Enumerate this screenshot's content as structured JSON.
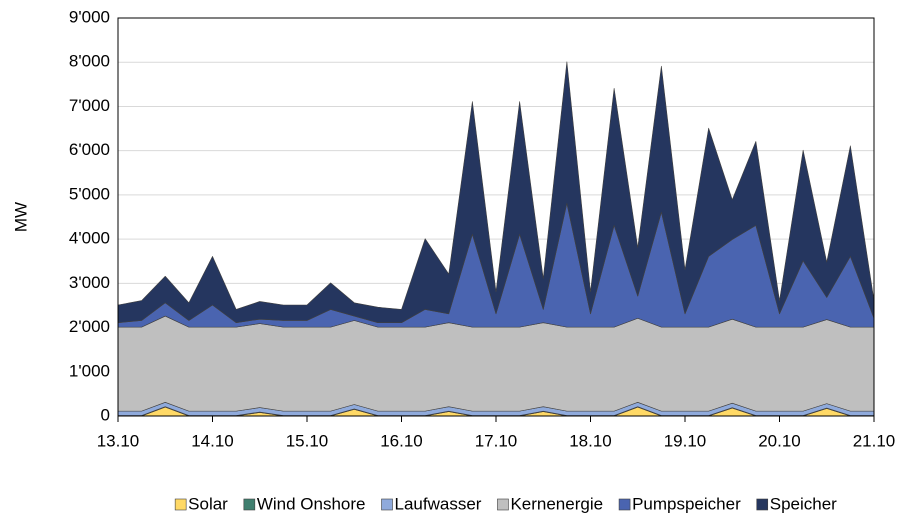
{
  "chart_data": {
    "type": "stacked_area",
    "y_label": "MW",
    "x": [
      0,
      0.25,
      0.5,
      0.75,
      1,
      1.25,
      1.5,
      1.75,
      2,
      2.25,
      2.5,
      2.75,
      3,
      3.25,
      3.5,
      3.75,
      4,
      4.25,
      4.5,
      4.75,
      5,
      5.25,
      5.5,
      5.75,
      6,
      6.25,
      6.5,
      6.75,
      7,
      7.25,
      7.5,
      7.75,
      8
    ],
    "xlim": [
      0,
      8
    ],
    "xticks": [
      {
        "value": 0,
        "label": "13.10"
      },
      {
        "value": 1,
        "label": "14.10"
      },
      {
        "value": 2,
        "label": "15.10"
      },
      {
        "value": 3,
        "label": "16.10"
      },
      {
        "value": 4,
        "label": "17.10"
      },
      {
        "value": 5,
        "label": "18.10"
      },
      {
        "value": 6,
        "label": "19.10"
      },
      {
        "value": 7,
        "label": "20.10"
      },
      {
        "value": 8,
        "label": "21.10"
      }
    ],
    "ylim": [
      0,
      9000
    ],
    "yticks": [
      0,
      {
        "value": 1000,
        "label": "1'000"
      },
      {
        "value": 2000,
        "label": "2'000"
      },
      {
        "value": 3000,
        "label": "3'000"
      },
      {
        "value": 4000,
        "label": "4'000"
      },
      {
        "value": 5000,
        "label": "5'000"
      },
      {
        "value": 6000,
        "label": "6'000"
      },
      {
        "value": 7000,
        "label": "7'000"
      },
      {
        "value": 8000,
        "label": "8'000"
      },
      {
        "value": 9000,
        "label": "9'000"
      }
    ],
    "grid": true,
    "series": [
      {
        "name": "Solar",
        "color": "#ffd966",
        "values": [
          0,
          0,
          200,
          0,
          0,
          0,
          80,
          0,
          0,
          0,
          150,
          0,
          0,
          0,
          100,
          0,
          0,
          0,
          100,
          0,
          0,
          0,
          200,
          0,
          0,
          0,
          180,
          0,
          0,
          0,
          170,
          0,
          0
        ]
      },
      {
        "name": "Wind Onshore",
        "color": "#3f7f6f",
        "values": [
          10,
          10,
          10,
          10,
          10,
          10,
          10,
          10,
          10,
          10,
          10,
          10,
          10,
          10,
          10,
          10,
          10,
          10,
          10,
          10,
          10,
          10,
          10,
          10,
          10,
          10,
          10,
          10,
          10,
          10,
          10,
          10,
          10
        ]
      },
      {
        "name": "Laufwasser",
        "color": "#8faadc",
        "values": [
          100,
          100,
          100,
          100,
          100,
          100,
          100,
          100,
          100,
          100,
          100,
          100,
          100,
          100,
          100,
          100,
          100,
          100,
          100,
          100,
          100,
          100,
          100,
          100,
          100,
          100,
          100,
          100,
          100,
          100,
          100,
          100,
          100
        ]
      },
      {
        "name": "Kernenergie",
        "color": "#bfbfbf",
        "values": [
          1900,
          1900,
          1950,
          1900,
          1900,
          1900,
          1900,
          1900,
          1900,
          1900,
          1900,
          1900,
          1900,
          1900,
          1900,
          1900,
          1900,
          1900,
          1900,
          1900,
          1900,
          1900,
          1900,
          1900,
          1900,
          1900,
          1900,
          1900,
          1900,
          1900,
          1900,
          1900,
          1900
        ]
      },
      {
        "name": "Pumpspeicher",
        "color": "#4a64b0",
        "values": [
          100,
          150,
          300,
          150,
          500,
          100,
          100,
          150,
          150,
          400,
          100,
          100,
          100,
          400,
          200,
          2100,
          300,
          2100,
          300,
          2800,
          300,
          2300,
          500,
          2600,
          300,
          1600,
          1800,
          2300,
          300,
          1500,
          500,
          1600,
          200
        ]
      },
      {
        "name": "Speicher",
        "color": "#25365f",
        "values": [
          400,
          450,
          600,
          400,
          1100,
          300,
          400,
          350,
          350,
          600,
          300,
          350,
          300,
          1600,
          900,
          3000,
          500,
          3000,
          700,
          3200,
          500,
          3100,
          1100,
          3300,
          1000,
          2900,
          900,
          1900,
          300,
          2500,
          800,
          2500,
          400
        ]
      }
    ]
  }
}
